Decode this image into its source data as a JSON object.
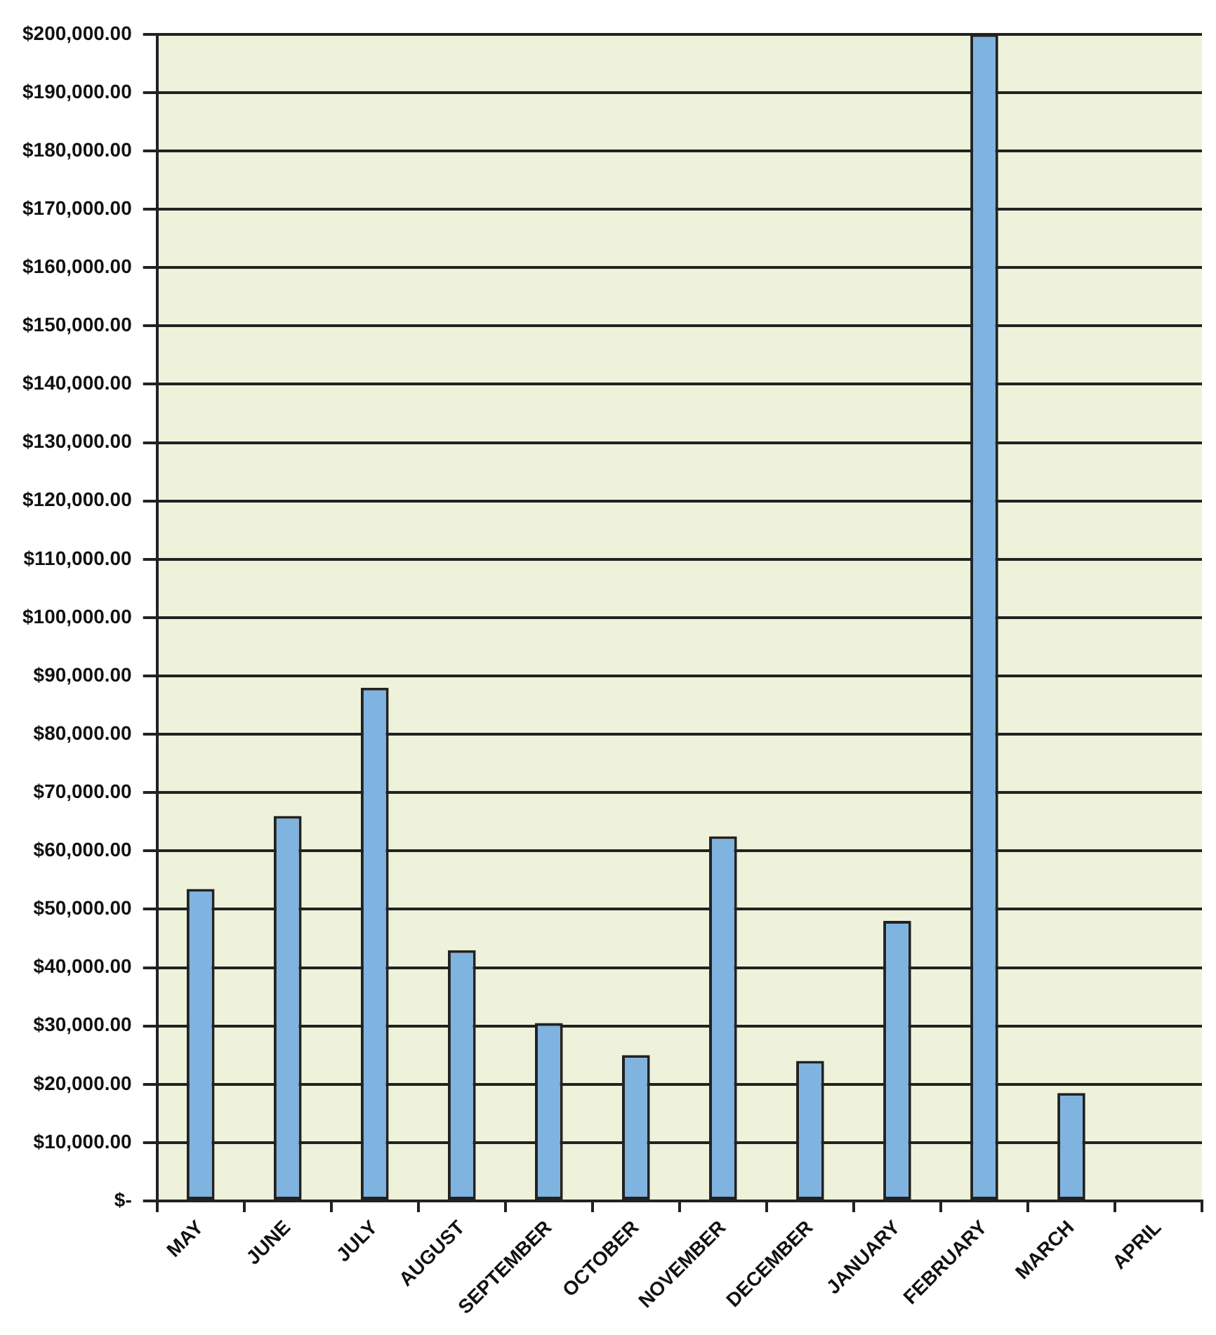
{
  "chart_data": {
    "type": "bar",
    "categories": [
      "MAY",
      "JUNE",
      "JULY",
      "AUGUST",
      "SEPTEMBER",
      "OCTOBER",
      "NOVEMBER",
      "DECEMBER",
      "JANUARY",
      "FEBRUARY",
      "MARCH",
      "APRIL"
    ],
    "values": [
      53500,
      66000,
      88000,
      43000,
      30500,
      25000,
      62500,
      24000,
      48000,
      200000,
      18500,
      null
    ],
    "color": "#7fb3e0",
    "ylim": [
      0,
      200000
    ],
    "yticks": [
      {
        "value": 0,
        "label": "$-"
      },
      {
        "value": 10000,
        "label": "$10,000.00"
      },
      {
        "value": 20000,
        "label": "$20,000.00"
      },
      {
        "value": 30000,
        "label": "$30,000.00"
      },
      {
        "value": 40000,
        "label": "$40,000.00"
      },
      {
        "value": 50000,
        "label": "$50,000.00"
      },
      {
        "value": 60000,
        "label": "$60,000.00"
      },
      {
        "value": 70000,
        "label": "$70,000.00"
      },
      {
        "value": 80000,
        "label": "$80,000.00"
      },
      {
        "value": 90000,
        "label": "$90,000.00"
      },
      {
        "value": 100000,
        "label": "$100,000.00"
      },
      {
        "value": 110000,
        "label": "$110,000.00"
      },
      {
        "value": 120000,
        "label": "$120,000.00"
      },
      {
        "value": 130000,
        "label": "$130,000.00"
      },
      {
        "value": 140000,
        "label": "$140,000.00"
      },
      {
        "value": 150000,
        "label": "$150,000.00"
      },
      {
        "value": 160000,
        "label": "$160,000.00"
      },
      {
        "value": 170000,
        "label": "$170,000.00"
      },
      {
        "value": 180000,
        "label": "$180,000.00"
      },
      {
        "value": 190000,
        "label": "$190,000.00"
      },
      {
        "value": 200000,
        "label": "$200,000.00"
      }
    ],
    "grid": "y"
  }
}
